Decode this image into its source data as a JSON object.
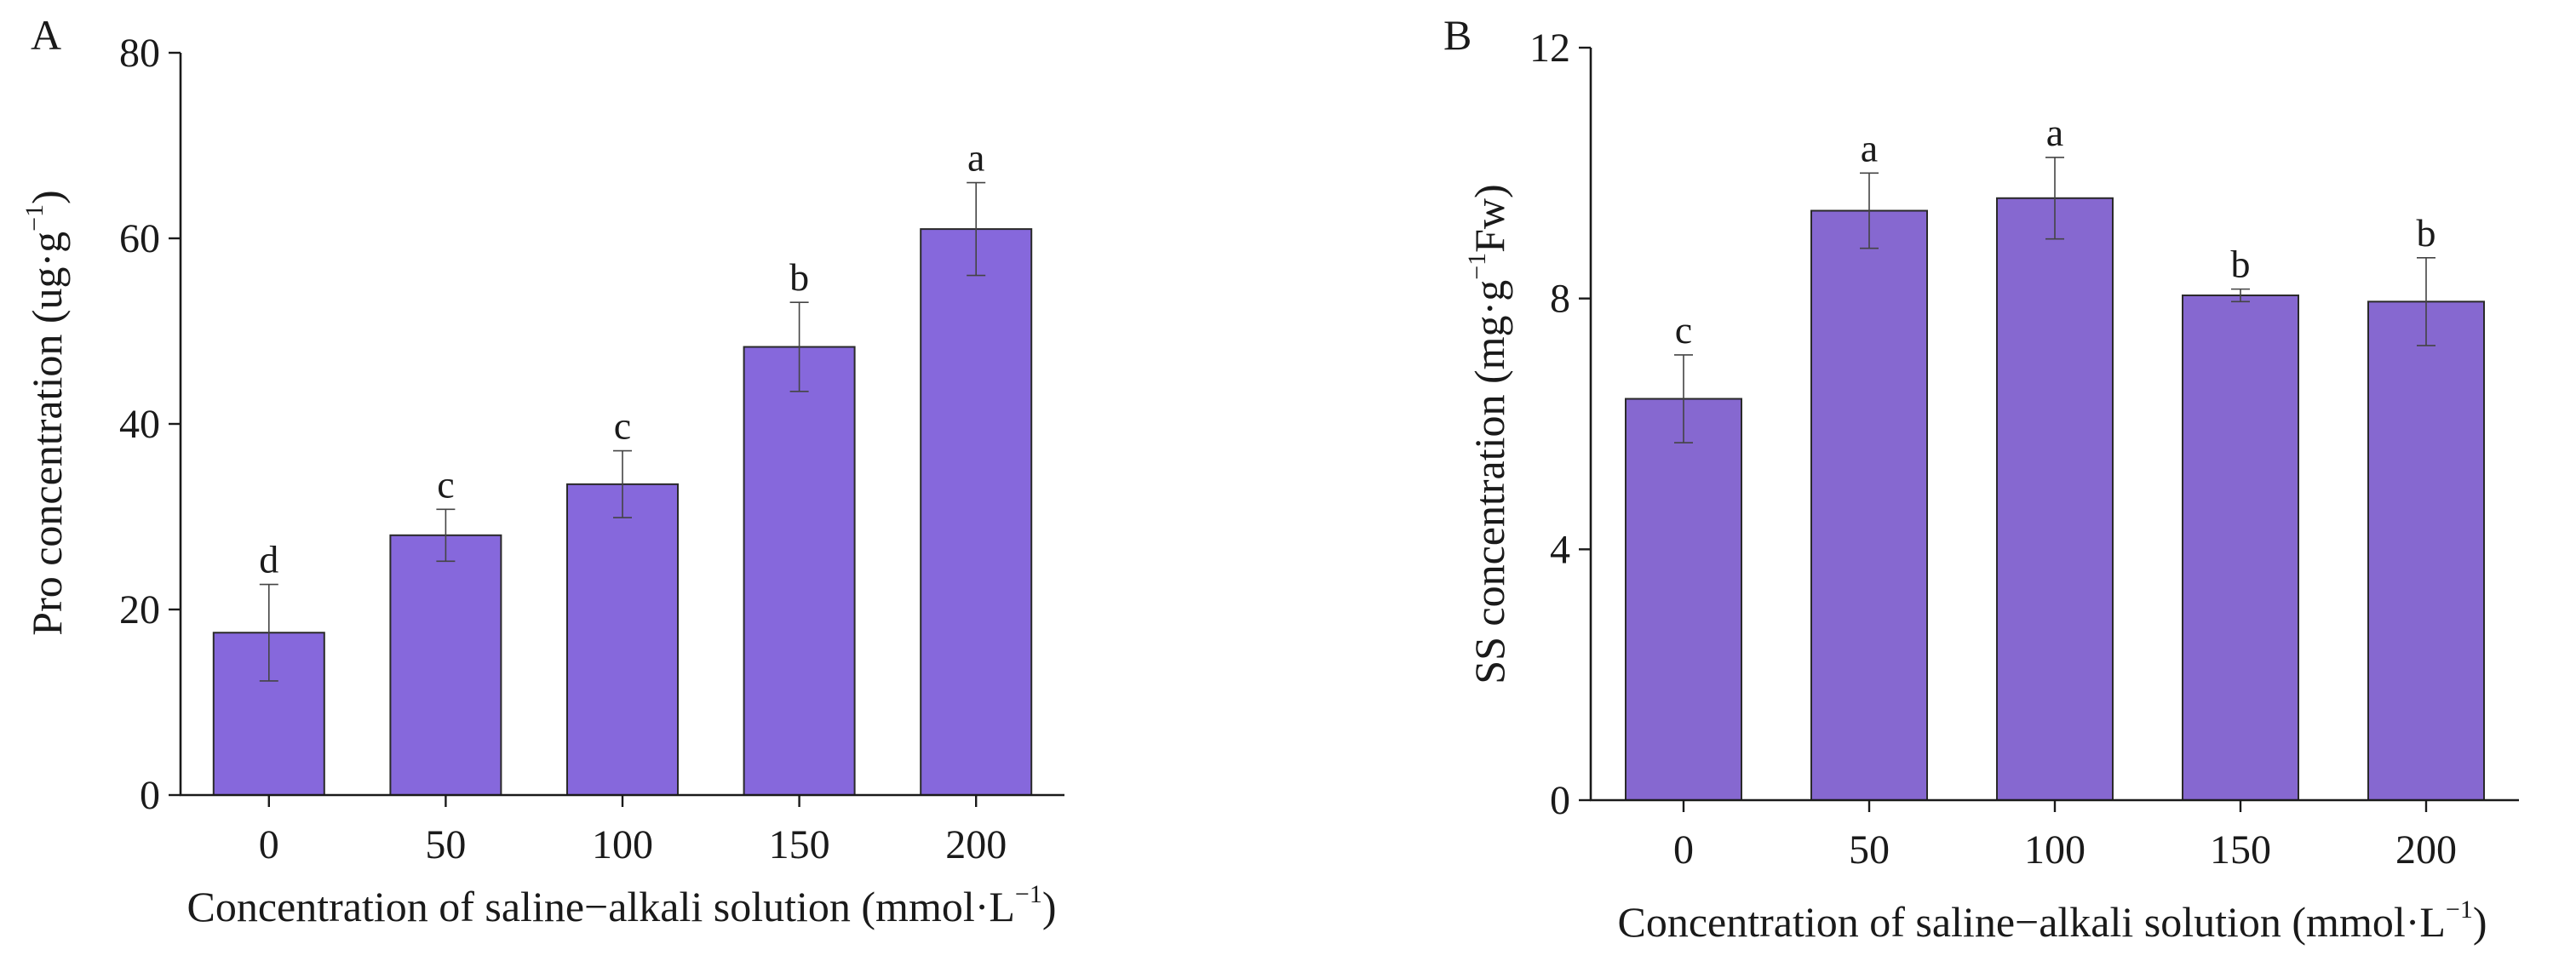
{
  "chart_data": [
    {
      "type": "bar",
      "panel_label": "A",
      "categories": [
        "0",
        "50",
        "100",
        "150",
        "200"
      ],
      "values": [
        17.5,
        28.0,
        33.5,
        48.3,
        61.0
      ],
      "errors": [
        5.2,
        2.8,
        3.6,
        4.8,
        5.0
      ],
      "significance": [
        "d",
        "c",
        "c",
        "b",
        "a"
      ],
      "ylim": [
        0,
        80
      ],
      "yticks": [
        "0",
        "20",
        "40",
        "60",
        "80"
      ],
      "ylabel": {
        "main": "Pro concentration (ug·g",
        "sup": "−1",
        "tail": ")"
      },
      "xlabel": {
        "main": "Concentration of saline−alkali solution (mmol·L",
        "sup": "−1",
        "tail": ")"
      },
      "bar_color": "#8668dc",
      "grid": false
    },
    {
      "type": "bar",
      "panel_label": "B",
      "categories": [
        "0",
        "50",
        "100",
        "150",
        "200"
      ],
      "values": [
        6.4,
        9.4,
        9.6,
        8.05,
        7.95
      ],
      "errors": [
        0.7,
        0.6,
        0.65,
        0.1,
        0.7
      ],
      "significance": [
        "c",
        "a",
        "a",
        "b",
        "b"
      ],
      "ylim": [
        0,
        12
      ],
      "yticks": [
        "0",
        "4",
        "8",
        "12"
      ],
      "ylabel": {
        "main": "SS concentration (mg·g",
        "sup": "−1",
        "tail": "Fw)"
      },
      "xlabel": {
        "main": "Concentration of saline−alkali solution (mmol·L",
        "sup": "−1",
        "tail": ")"
      },
      "bar_color": "#8668d0",
      "grid": false
    }
  ]
}
